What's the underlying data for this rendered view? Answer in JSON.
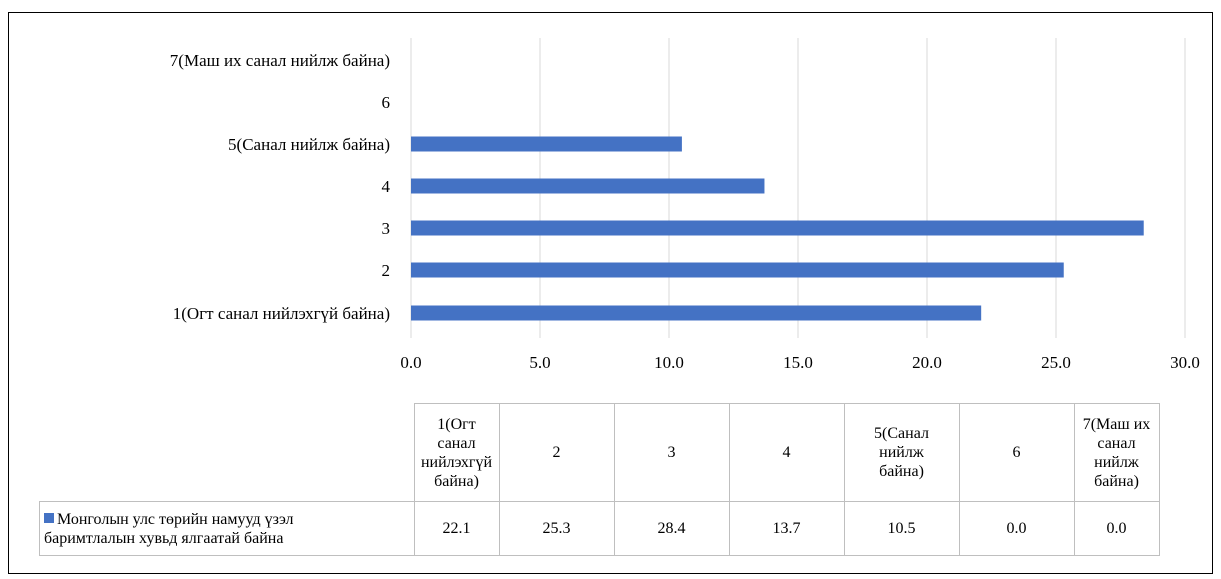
{
  "chart_data": {
    "type": "bar",
    "orientation": "horizontal",
    "categories": [
      "1(Огт санал нийлэхгүй байна)",
      "2",
      "3",
      "4",
      "5(Санал нийлж байна)",
      "6",
      "7(Маш их санал нийлж байна)"
    ],
    "series": [
      {
        "name": "Монголын улс төрийн намууд үзэл баримтлалын хувьд ялгаатай байна",
        "values": [
          22.1,
          25.3,
          28.4,
          13.7,
          10.5,
          0.0,
          0.0
        ],
        "color": "#4472c4"
      }
    ],
    "xlim": [
      0,
      30
    ],
    "xticks": [
      "0.0",
      "5.0",
      "10.0",
      "15.0",
      "20.0",
      "25.0",
      "30.0"
    ],
    "grid": true,
    "data_table": true,
    "table_values": [
      "22.1",
      "25.3",
      "28.4",
      "13.7",
      "10.5",
      "0.0",
      "0.0"
    ],
    "table_header_lines": [
      [
        "1(Огт",
        "санал",
        "нийлэхгүй",
        "байна)"
      ],
      [
        "2"
      ],
      [
        "3"
      ],
      [
        "4"
      ],
      [
        "5(Санал",
        "нийлж",
        "байна)"
      ],
      [
        "6"
      ],
      [
        "7(Маш их",
        "санал",
        "нийлж",
        "байна)"
      ]
    ],
    "series_label_lines": [
      "Монголын улс төрийн намууд үзэл",
      "баримтлалын хувьд ялгаатай байна"
    ]
  }
}
